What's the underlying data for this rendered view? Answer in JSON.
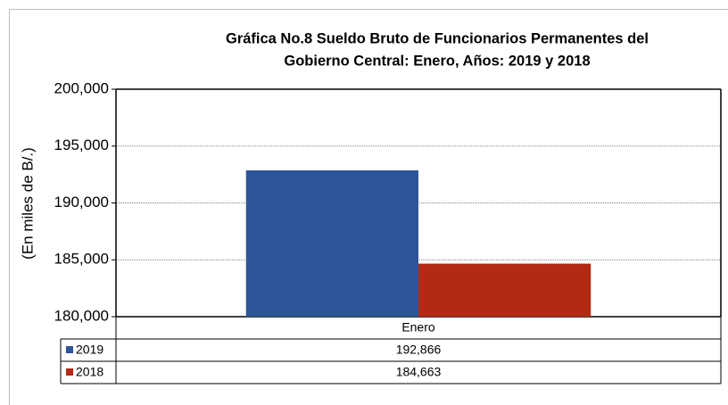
{
  "chart_data": {
    "type": "bar",
    "title": [
      "Gráfica No.8 Sueldo Bruto de Funcionarios Permanentes del",
      "Gobierno Central: Enero, Años: 2019 y 2018"
    ],
    "y_label": "(En miles de B/.)",
    "categories": [
      "Enero"
    ],
    "series": [
      {
        "name": "2019",
        "color": "#2e5597",
        "values": [
          192866
        ],
        "value_labels": [
          "192,866"
        ]
      },
      {
        "name": "2018",
        "color": "#b02a14",
        "values": [
          184663
        ],
        "value_labels": [
          "184,663"
        ]
      }
    ],
    "ylim": [
      180000,
      200000
    ],
    "yticks": [
      {
        "value": 180000,
        "label": "180,000"
      },
      {
        "value": 185000,
        "label": "185,000"
      },
      {
        "value": 190000,
        "label": "190,000"
      },
      {
        "value": 195000,
        "label": "195,000"
      },
      {
        "value": 200000,
        "label": "200,000"
      }
    ],
    "grid": true
  }
}
